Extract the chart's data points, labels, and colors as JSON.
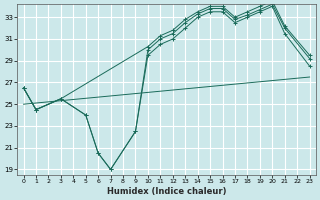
{
  "xlabel": "Humidex (Indice chaleur)",
  "bg_color": "#cce8ea",
  "grid_color": "#ffffff",
  "line_color": "#1a6b5a",
  "xlim": [
    -0.5,
    23.5
  ],
  "ylim": [
    18.5,
    34.2
  ],
  "xticks": [
    0,
    1,
    2,
    3,
    4,
    5,
    6,
    7,
    8,
    9,
    10,
    11,
    12,
    13,
    14,
    15,
    16,
    17,
    18,
    19,
    20,
    21,
    22,
    23
  ],
  "yticks": [
    19,
    21,
    23,
    25,
    27,
    29,
    31,
    33
  ],
  "series": [
    {
      "x": [
        0,
        1,
        3,
        5,
        6,
        7,
        9,
        10,
        11,
        12,
        13,
        14,
        15,
        16,
        17,
        18,
        19,
        20,
        21,
        23
      ],
      "y": [
        26.5,
        24.5,
        25.5,
        24.0,
        20.5,
        19.0,
        22.5,
        29.5,
        30.5,
        31.0,
        32.0,
        33.0,
        33.5,
        33.5,
        32.5,
        33.0,
        33.5,
        34.0,
        31.5,
        28.5
      ],
      "marker": true
    },
    {
      "x": [
        0,
        1,
        3,
        5,
        6,
        7,
        9,
        10,
        11,
        12,
        13,
        14,
        15,
        16,
        17,
        18,
        19,
        20,
        21,
        23
      ],
      "y": [
        26.5,
        24.5,
        25.5,
        24.0,
        20.5,
        19.0,
        22.5,
        30.0,
        31.0,
        31.5,
        32.5,
        33.3,
        33.8,
        33.8,
        32.8,
        33.2,
        33.7,
        34.2,
        32.0,
        29.2
      ],
      "marker": true
    },
    {
      "x": [
        0,
        1,
        3,
        10,
        11,
        12,
        13,
        14,
        15,
        16,
        17,
        18,
        19,
        20,
        21,
        23
      ],
      "y": [
        26.5,
        24.5,
        25.5,
        30.3,
        31.3,
        31.8,
        32.8,
        33.5,
        34.0,
        34.0,
        33.0,
        33.5,
        34.0,
        34.5,
        32.2,
        29.5
      ],
      "marker": true
    },
    {
      "x": [
        0,
        23
      ],
      "y": [
        25.0,
        27.5
      ],
      "marker": false
    }
  ]
}
